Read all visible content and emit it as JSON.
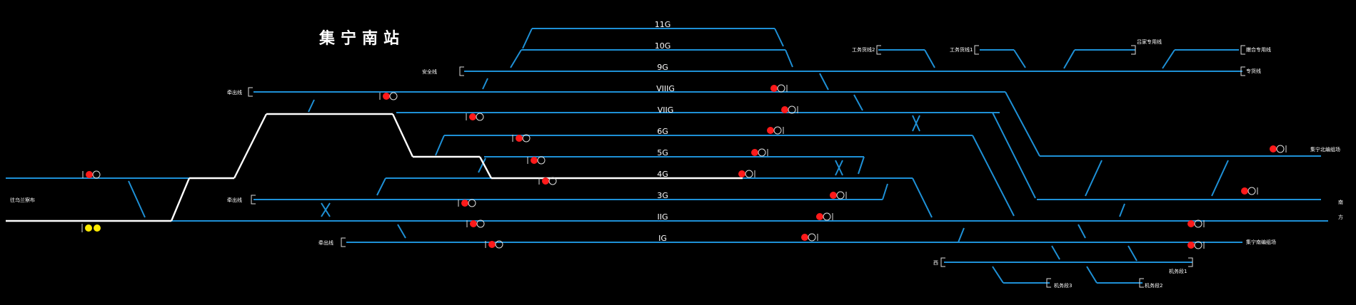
{
  "station_title": "集宁南站",
  "tracks": [
    {
      "id": "11G",
      "label": "11G"
    },
    {
      "id": "10G",
      "label": "10G"
    },
    {
      "id": "9G",
      "label": "9G"
    },
    {
      "id": "VIIIG",
      "label": "VIIIG"
    },
    {
      "id": "VIIG",
      "label": "VIIG"
    },
    {
      "id": "6G",
      "label": "6G"
    },
    {
      "id": "5G",
      "label": "5G"
    },
    {
      "id": "4G",
      "label": "4G"
    },
    {
      "id": "3G",
      "label": "3G"
    },
    {
      "id": "IIG",
      "label": "IIG"
    },
    {
      "id": "IG",
      "label": "IG"
    }
  ],
  "line_labels": {
    "safety_line": "安全线",
    "tow_line_1": "牵出线",
    "tow_line_2": "牵出线",
    "tow_line_3": "牵出线",
    "left_direction": "往乌兰察布",
    "work_line_2": "工务货线2",
    "work_line_1": "工务货线1",
    "hugong_line": "吕家专用线",
    "tuocheng_line": "嫩合专用线",
    "goods_line": "专货线",
    "to_north": "集宁北编组场",
    "right_a": "南",
    "right_b": "方",
    "to_east": "集宁南编组场",
    "bottom_left": "西",
    "machine_1": "机务段1",
    "machine_2": "机务段2",
    "machine_3": "机务段3"
  },
  "colors": {
    "track": "#1e90d6",
    "route": "#ffffff",
    "signal_red": "#ff1a1a",
    "signal_yellow": "#ffeb00",
    "background": "#000000"
  },
  "signal_states": {
    "left_entry_lower": "yellow-yellow",
    "others": "red"
  }
}
